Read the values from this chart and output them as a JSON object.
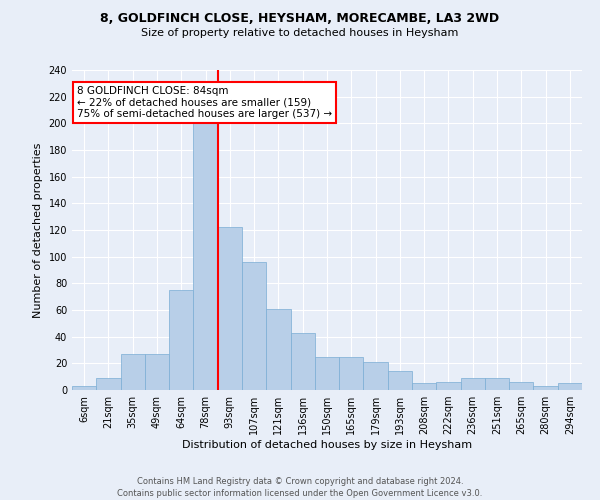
{
  "title": "8, GOLDFINCH CLOSE, HEYSHAM, MORECAMBE, LA3 2WD",
  "subtitle": "Size of property relative to detached houses in Heysham",
  "xlabel": "Distribution of detached houses by size in Heysham",
  "ylabel": "Number of detached properties",
  "categories": [
    "6sqm",
    "21sqm",
    "35sqm",
    "49sqm",
    "64sqm",
    "78sqm",
    "93sqm",
    "107sqm",
    "121sqm",
    "136sqm",
    "150sqm",
    "165sqm",
    "179sqm",
    "193sqm",
    "208sqm",
    "222sqm",
    "236sqm",
    "251sqm",
    "265sqm",
    "280sqm",
    "294sqm"
  ],
  "values": [
    3,
    9,
    27,
    27,
    75,
    200,
    122,
    96,
    61,
    43,
    25,
    25,
    21,
    14,
    5,
    6,
    9,
    9,
    6,
    3,
    5
  ],
  "bar_color": "#b8cfe8",
  "bar_edge_color": "#7aadd4",
  "vline_x_index": 5.5,
  "vline_color": "red",
  "annotation_text": "8 GOLDFINCH CLOSE: 84sqm\n← 22% of detached houses are smaller (159)\n75% of semi-detached houses are larger (537) →",
  "annotation_box_color": "white",
  "annotation_box_edge": "red",
  "background_color": "#e8eef8",
  "grid_color": "#ffffff",
  "footer": "Contains HM Land Registry data © Crown copyright and database right 2024.\nContains public sector information licensed under the Open Government Licence v3.0.",
  "ylim": [
    0,
    240
  ],
  "yticks": [
    0,
    20,
    40,
    60,
    80,
    100,
    120,
    140,
    160,
    180,
    200,
    220,
    240
  ],
  "title_fontsize": 9,
  "subtitle_fontsize": 8,
  "ylabel_fontsize": 8,
  "xlabel_fontsize": 8,
  "tick_fontsize": 7,
  "footer_fontsize": 6,
  "annot_fontsize": 7.5
}
